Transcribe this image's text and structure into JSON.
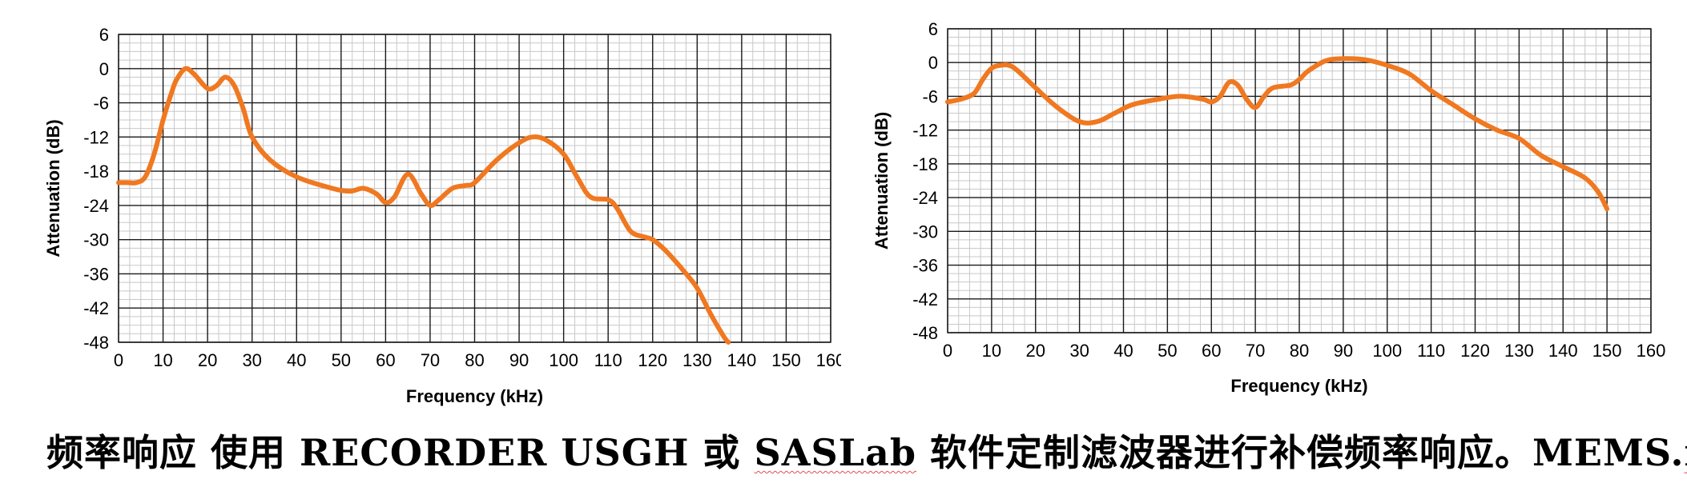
{
  "chart_data": [
    {
      "type": "line",
      "xlabel": "Frequency (kHz)",
      "ylabel": "Attenuation (dB)",
      "xlim": [
        0,
        160
      ],
      "ylim": [
        -48,
        6
      ],
      "x_ticks": [
        "0",
        "10",
        "20",
        "30",
        "40",
        "50",
        "60",
        "70",
        "80",
        "90",
        "100",
        "110",
        "120",
        "130",
        "140",
        "150",
        "160"
      ],
      "y_ticks": [
        "6",
        "0",
        "-6",
        "-12",
        "-18",
        "-24",
        "-30",
        "-36",
        "-42",
        "-48"
      ],
      "grid": true,
      "line_color": "#f07820",
      "series": [
        {
          "x": [
            0,
            2,
            4,
            6,
            8,
            10,
            12,
            13,
            15,
            17,
            20,
            22,
            24,
            26,
            28,
            30,
            34,
            40,
            48,
            52,
            55,
            58,
            60,
            62,
            65,
            68,
            70,
            72,
            75,
            78,
            80,
            85,
            90,
            93,
            96,
            100,
            103,
            106,
            110,
            112,
            115,
            118,
            120,
            123,
            127,
            130,
            133,
            136,
            137
          ],
          "y": [
            -20,
            -20,
            -20,
            -19,
            -15,
            -9,
            -4,
            -2,
            0,
            -1,
            -3.5,
            -3,
            -1.5,
            -3,
            -7,
            -12,
            -16,
            -19,
            -21,
            -21.5,
            -21,
            -22,
            -23.5,
            -22.5,
            -18.5,
            -22,
            -24,
            -23,
            -21,
            -20.5,
            -20,
            -16,
            -13,
            -12,
            -12.5,
            -15,
            -19,
            -22.5,
            -23,
            -24.5,
            -28.5,
            -29.5,
            -30,
            -32,
            -35.5,
            -38.5,
            -43,
            -47,
            -48
          ]
        }
      ]
    },
    {
      "type": "line",
      "xlabel": "Frequency (kHz)",
      "ylabel": "Attenuation (dB)",
      "xlim": [
        0,
        160
      ],
      "ylim": [
        -48,
        6
      ],
      "x_ticks": [
        "0",
        "10",
        "20",
        "30",
        "40",
        "50",
        "60",
        "70",
        "80",
        "90",
        "100",
        "110",
        "120",
        "130",
        "140",
        "150",
        "160"
      ],
      "y_ticks": [
        "6",
        "0",
        "-6",
        "-12",
        "-18",
        "-24",
        "-30",
        "-36",
        "-42",
        "-48"
      ],
      "grid": true,
      "line_color": "#f07820",
      "series": [
        {
          "x": [
            0,
            3,
            6,
            8,
            10,
            12,
            14,
            16,
            20,
            25,
            30,
            34,
            38,
            42,
            48,
            53,
            58,
            60,
            62,
            64,
            66,
            68,
            70,
            72,
            74,
            78,
            80,
            82,
            86,
            90,
            95,
            100,
            105,
            110,
            115,
            120,
            125,
            130,
            135,
            140,
            145,
            148,
            150
          ],
          "y": [
            -7,
            -6.5,
            -5.5,
            -3,
            -1,
            -0.5,
            -0.5,
            -1.5,
            -4.5,
            -8,
            -10.5,
            -10.5,
            -9,
            -7.5,
            -6.5,
            -6,
            -6.5,
            -7,
            -6,
            -3.5,
            -4,
            -6.5,
            -8,
            -6,
            -4.5,
            -4,
            -3,
            -1.5,
            0.3,
            0.7,
            0.5,
            -0.5,
            -2,
            -5,
            -7.5,
            -10,
            -12,
            -13.5,
            -16.5,
            -18.5,
            -20.5,
            -23,
            -26
          ]
        }
      ]
    }
  ],
  "caption": {
    "prefix": "频率响应  使用 RECORDER USGH 或 ",
    "saslab": "SASLab",
    "middle": " 软件定制滤波器进行补偿频率响应。MEMS.",
    "flf": "flf"
  }
}
